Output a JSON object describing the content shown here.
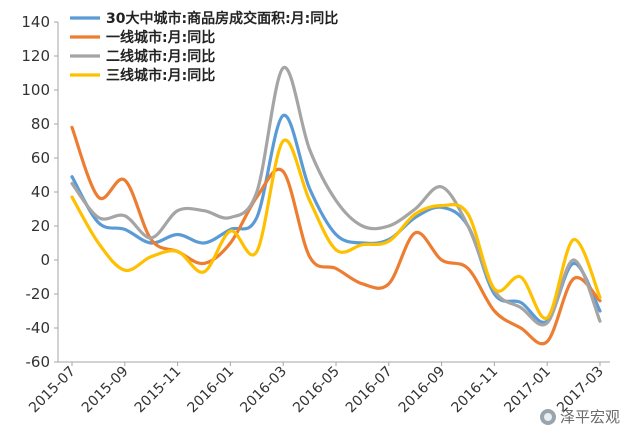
{
  "chart_data": {
    "type": "line",
    "title": "",
    "xlabel": "",
    "ylabel": "",
    "ylim": [
      -60,
      140
    ],
    "yticks": [
      -60,
      -40,
      -20,
      0,
      20,
      40,
      60,
      80,
      100,
      120,
      140
    ],
    "x": [
      "2015-07",
      "2015-08",
      "2015-09",
      "2015-10",
      "2015-11",
      "2015-12",
      "2016-01",
      "2016-02",
      "2016-03",
      "2016-04",
      "2016-05",
      "2016-06",
      "2016-07",
      "2016-08",
      "2016-09",
      "2016-10",
      "2016-11",
      "2016-12",
      "2017-01",
      "2017-02",
      "2017-03"
    ],
    "xtick_labels": [
      "2015-07",
      "2015-09",
      "2015-11",
      "2016-01",
      "2016-03",
      "2016-05",
      "2016-07",
      "2016-09",
      "2016-11",
      "2017-01",
      "2017-03"
    ],
    "legend_position": "top-left",
    "grid": false,
    "series": [
      {
        "name": "30大中城市:商品房成交面积:月:同比",
        "color": "#5b9bd5",
        "values": [
          49,
          22,
          18,
          10,
          15,
          10,
          18,
          25,
          85,
          42,
          15,
          10,
          12,
          25,
          31,
          20,
          -20,
          -25,
          -36,
          -2,
          -30
        ]
      },
      {
        "name": "一线城市:月:同比",
        "color": "#ed7d31",
        "values": [
          78,
          37,
          47,
          12,
          5,
          -2,
          10,
          37,
          52,
          2,
          -5,
          -14,
          -14,
          16,
          0,
          -5,
          -30,
          -40,
          -48,
          -11,
          -24
        ]
      },
      {
        "name": "二线城市:月:同比",
        "color": "#a5a5a5",
        "values": [
          45,
          25,
          26,
          13,
          29,
          29,
          25,
          40,
          113,
          65,
          35,
          20,
          20,
          30,
          43,
          20,
          -18,
          -28,
          -37,
          0,
          -36
        ]
      },
      {
        "name": "三线城市:月:同比",
        "color": "#ffc000",
        "values": [
          37,
          10,
          -6,
          2,
          5,
          -7,
          17,
          5,
          70,
          35,
          6,
          9,
          11,
          27,
          32,
          27,
          -17,
          -10,
          -34,
          12,
          -22
        ]
      }
    ]
  },
  "watermark": {
    "text": "泽平宏观"
  }
}
